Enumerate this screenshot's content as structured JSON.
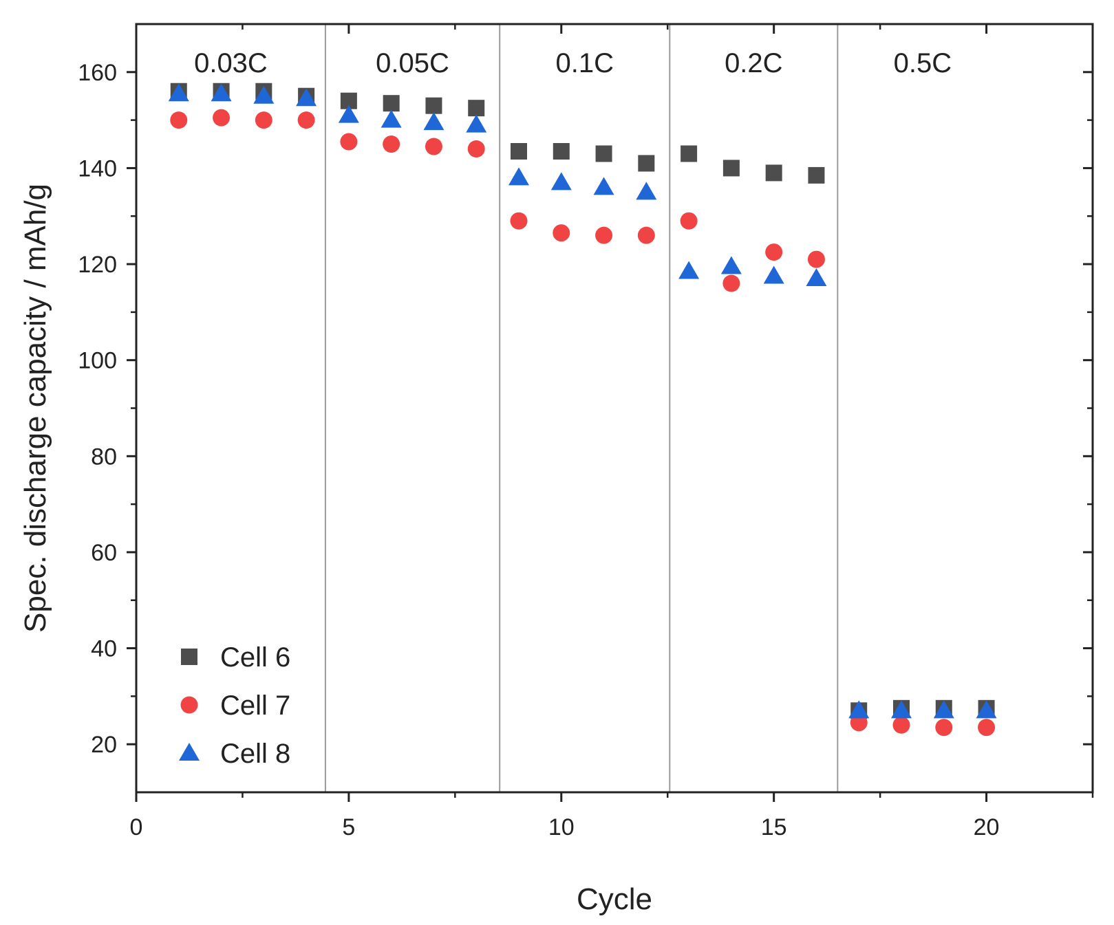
{
  "chart_data": {
    "type": "scatter",
    "title": "",
    "xlabel": "Cycle",
    "ylabel": "Spec. discharge capacity / mAh/g",
    "xlim": [
      0,
      22.5
    ],
    "ylim": [
      10,
      170
    ],
    "xticks": [
      0,
      5,
      10,
      15,
      20
    ],
    "yticks": [
      20,
      40,
      60,
      80,
      100,
      120,
      140,
      160
    ],
    "x_minor_step": 2.5,
    "y_minor_step": 10,
    "grid": false,
    "legend_position": "bottom-left",
    "regions": [
      {
        "label": "0.03C",
        "start": 0,
        "end": 4.45
      },
      {
        "label": "0.05C",
        "start": 4.45,
        "end": 8.55
      },
      {
        "label": "0.1C",
        "start": 8.55,
        "end": 12.55
      },
      {
        "label": "0.2C",
        "start": 12.55,
        "end": 16.5
      },
      {
        "label": "0.5C",
        "start": 16.5,
        "end": 22.5
      }
    ],
    "region_dividers": [
      4.45,
      8.55,
      12.55,
      16.5
    ],
    "series": [
      {
        "name": "Cell 6",
        "marker": "square",
        "color": "#4d4d4d",
        "x": [
          1,
          2,
          3,
          4,
          5,
          6,
          7,
          8,
          9,
          10,
          11,
          12,
          13,
          14,
          15,
          16,
          17,
          18,
          19,
          20
        ],
        "values": [
          156,
          156,
          156,
          155,
          154,
          153.5,
          153,
          152.5,
          143.5,
          143.5,
          143,
          141,
          143,
          140,
          139,
          138.5,
          27,
          27.5,
          27.5,
          27.5
        ]
      },
      {
        "name": "Cell 7",
        "marker": "circle",
        "color": "#f04444",
        "x": [
          1,
          2,
          3,
          4,
          5,
          6,
          7,
          8,
          9,
          10,
          11,
          12,
          13,
          14,
          15,
          16,
          17,
          18,
          19,
          20
        ],
        "values": [
          150,
          150.5,
          150,
          150,
          145.5,
          145,
          144.5,
          144,
          129,
          126.5,
          126,
          126,
          129,
          116,
          122.5,
          121,
          24.5,
          24,
          23.5,
          23.5
        ]
      },
      {
        "name": "Cell 8",
        "marker": "triangle",
        "color": "#1f66d6",
        "x": [
          1,
          2,
          3,
          4,
          5,
          6,
          7,
          8,
          9,
          10,
          11,
          12,
          13,
          14,
          15,
          16,
          17,
          18,
          19,
          20
        ],
        "values": [
          155.5,
          155.5,
          155,
          154.5,
          151,
          150,
          149.5,
          149,
          138,
          137,
          136,
          135,
          118.5,
          119.5,
          117.5,
          117,
          27,
          27,
          27,
          27
        ]
      }
    ]
  }
}
